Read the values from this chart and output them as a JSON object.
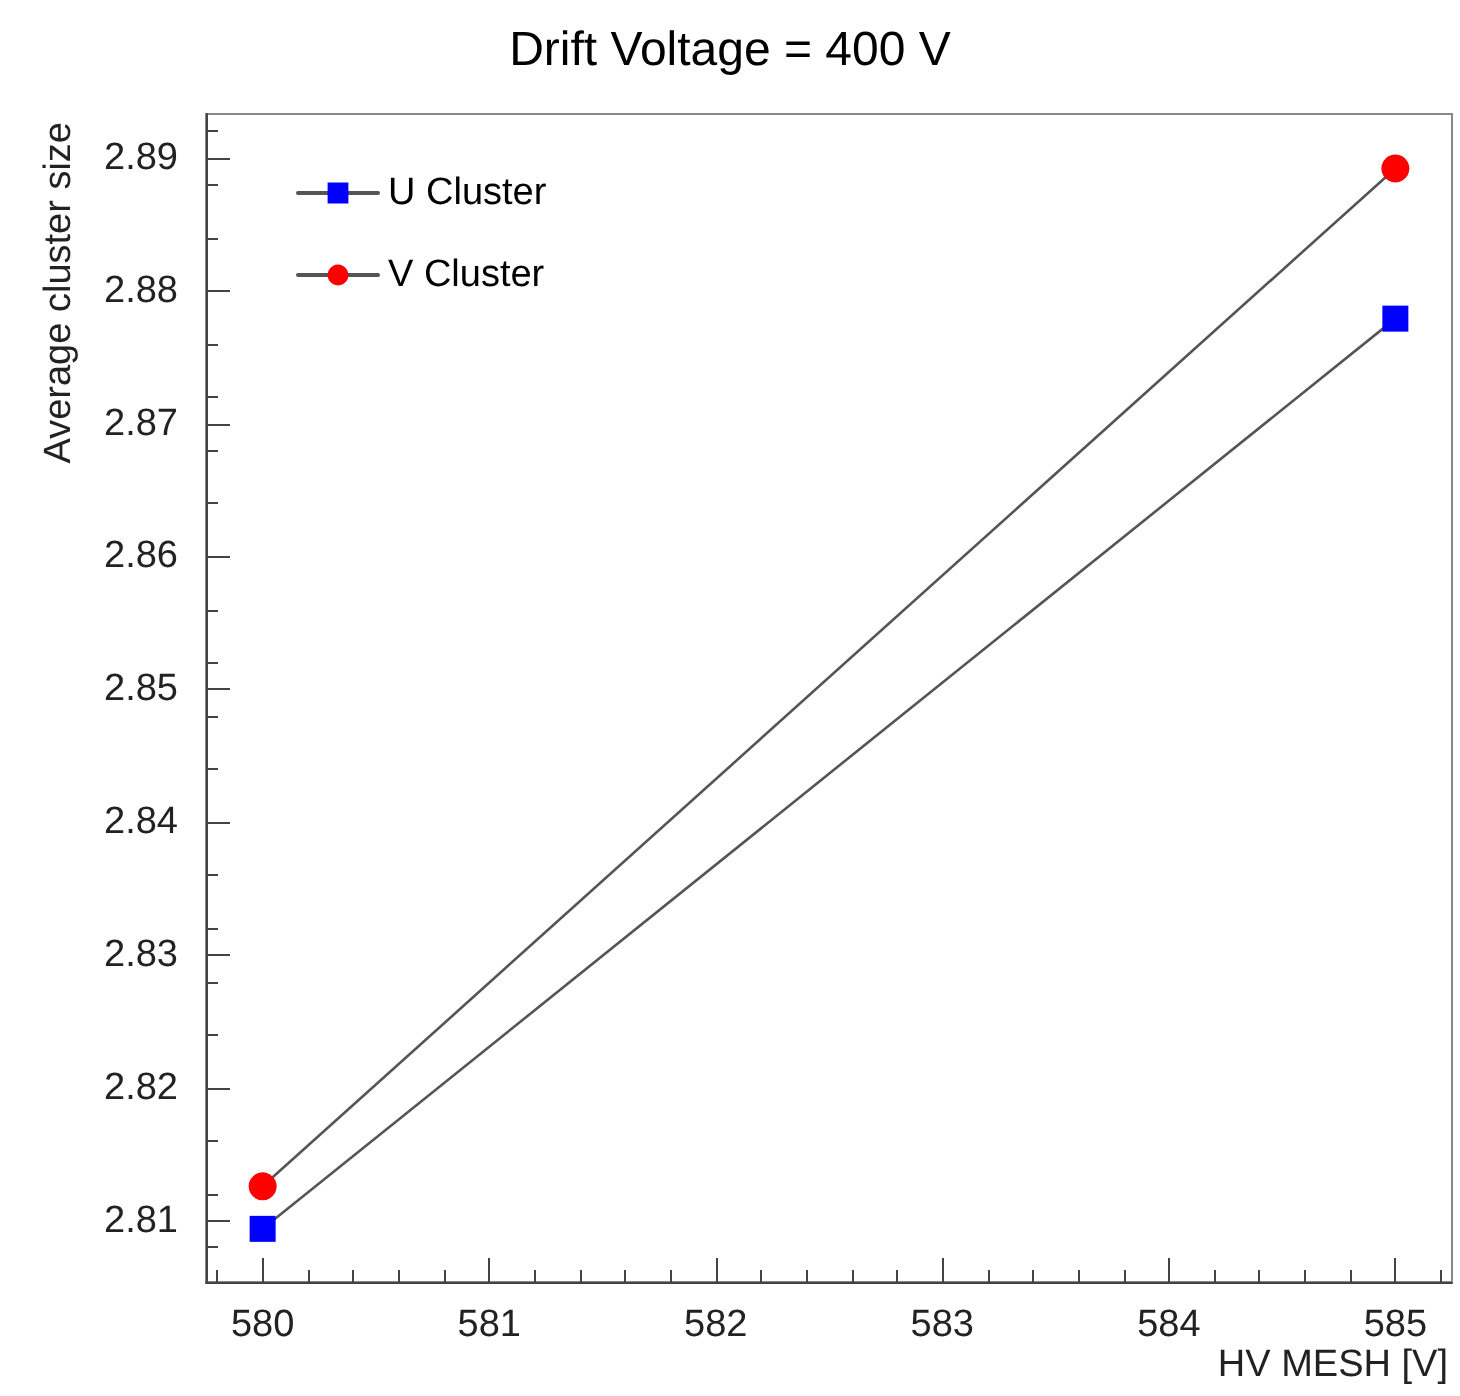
{
  "chart_data": {
    "type": "line",
    "title": "Drift Voltage = 400 V",
    "xlabel": "HV MESH [V]",
    "ylabel": "Average cluster size",
    "x": [
      580,
      585
    ],
    "series": [
      {
        "name": "U Cluster",
        "color": "#0000ff",
        "marker": "square",
        "values": [
          2.8094,
          2.8779
        ]
      },
      {
        "name": "V Cluster",
        "color": "#ff0000",
        "marker": "circle",
        "values": [
          2.8126,
          2.8892
        ]
      }
    ],
    "xlim": [
      579.75,
      585.25
    ],
    "xticks": [
      580,
      581,
      582,
      583,
      584,
      585
    ],
    "ylim": [
      2.8054,
      2.8933
    ],
    "yticks": [
      2.81,
      2.82,
      2.83,
      2.84,
      2.85,
      2.86,
      2.87,
      2.88,
      2.89
    ],
    "grid": false,
    "legend": "top left",
    "line_style": "solid"
  }
}
